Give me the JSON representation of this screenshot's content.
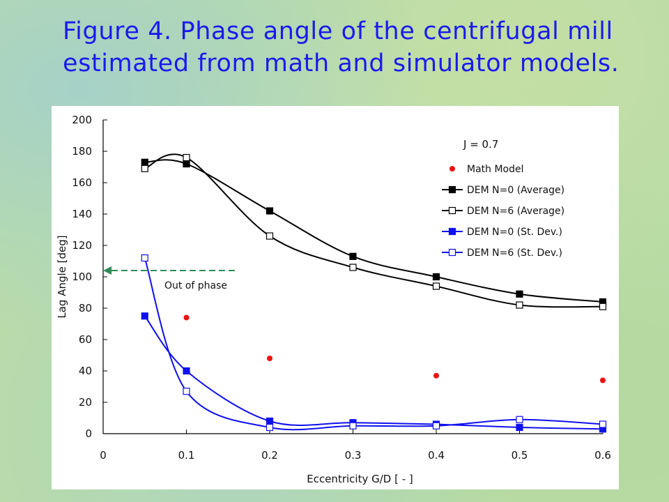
{
  "slide": {
    "title_line1": "Figure 4. Phase angle of the centrifugal mill",
    "title_line2": "estimated from math and simulator models."
  },
  "colors": {
    "background": "#b9dca8",
    "title": "#1a1aee",
    "black_series": "#000000",
    "blue_series": "#1010ee",
    "math_model": "#ee1111",
    "annotation_arrow": "#2e8b57"
  },
  "chart_data": {
    "type": "line",
    "title": "",
    "xlabel": "Eccentricity G/D [ - ]",
    "ylabel": "Lag Angle [deg]",
    "xlim": [
      0,
      0.6
    ],
    "ylim": [
      0,
      200
    ],
    "xticks": [
      "0",
      "0.1",
      "0.2",
      "0.3",
      "0.4",
      "0.5",
      "0.6"
    ],
    "yticks": [
      "0",
      "20",
      "40",
      "60",
      "80",
      "100",
      "120",
      "140",
      "160",
      "180",
      "200"
    ],
    "grid": false,
    "legend_position": "top-right",
    "parameter_label": "J = 0.7",
    "annotation": {
      "text": "Out of phase",
      "arrow_y": 104
    },
    "series": [
      {
        "name": "Math Model",
        "style": "dot",
        "color": "#ee1111",
        "points": [
          [
            0.1,
            74
          ],
          [
            0.2,
            48
          ],
          [
            0.4,
            37
          ],
          [
            0.6,
            34
          ]
        ]
      },
      {
        "name": "DEM N=0 (Average)",
        "style": "line-filled-square",
        "color": "#000000",
        "points": [
          [
            0.05,
            173
          ],
          [
            0.1,
            172
          ],
          [
            0.2,
            142
          ],
          [
            0.3,
            113
          ],
          [
            0.4,
            100
          ],
          [
            0.5,
            89
          ],
          [
            0.6,
            84
          ]
        ]
      },
      {
        "name": "DEM N=6 (Average)",
        "style": "line-open-square",
        "color": "#000000",
        "points": [
          [
            0.05,
            169
          ],
          [
            0.1,
            176
          ],
          [
            0.2,
            126
          ],
          [
            0.3,
            106
          ],
          [
            0.4,
            94
          ],
          [
            0.5,
            82
          ],
          [
            0.6,
            81
          ]
        ]
      },
      {
        "name": "DEM N=0 (St. Dev.)",
        "style": "line-filled-square",
        "color": "#1010ee",
        "points": [
          [
            0.05,
            75
          ],
          [
            0.1,
            40
          ],
          [
            0.2,
            8
          ],
          [
            0.3,
            7
          ],
          [
            0.4,
            6
          ],
          [
            0.5,
            4
          ],
          [
            0.6,
            3
          ]
        ]
      },
      {
        "name": "DEM N=6 (St. Dev.)",
        "style": "line-open-square",
        "color": "#1010ee",
        "points": [
          [
            0.05,
            112
          ],
          [
            0.1,
            27
          ],
          [
            0.2,
            4
          ],
          [
            0.3,
            5
          ],
          [
            0.4,
            5
          ],
          [
            0.5,
            9
          ],
          [
            0.6,
            6
          ]
        ]
      }
    ]
  }
}
